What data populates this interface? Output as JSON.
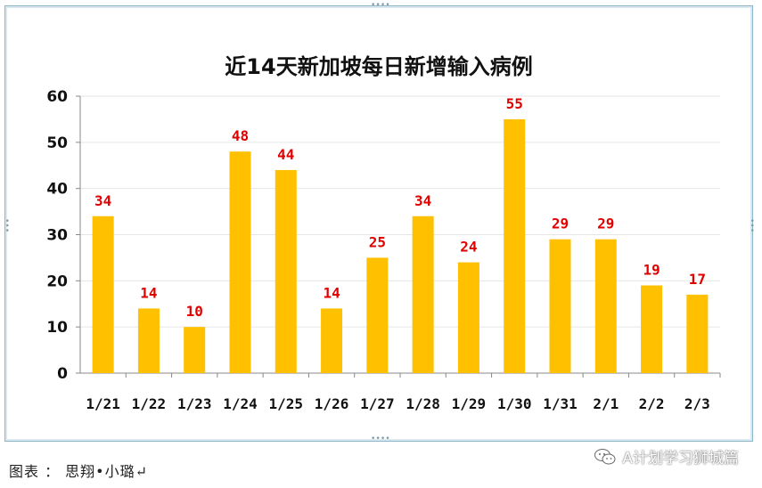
{
  "chart_data": {
    "type": "bar",
    "title": "近14天新加坡每日新增输入病例",
    "categories": [
      "1/21",
      "1/22",
      "1/23",
      "1/24",
      "1/25",
      "1/26",
      "1/27",
      "1/28",
      "1/29",
      "1/30",
      "1/31",
      "2/1",
      "2/2",
      "2/3"
    ],
    "values": [
      34,
      14,
      10,
      48,
      44,
      14,
      25,
      34,
      24,
      55,
      29,
      29,
      19,
      17
    ],
    "ylim": [
      0,
      60
    ],
    "yticks": [
      0,
      10,
      20,
      30,
      40,
      50,
      60
    ],
    "grid": true,
    "legend": "none",
    "bar_color": "#FFC000",
    "label_color": "#E00000",
    "axis_color": "#888888"
  },
  "caption": "图表 ： 思翔•小璐↵",
  "watermark": {
    "icon": "wechat-icon",
    "text": "A计划学习狮城篇"
  }
}
